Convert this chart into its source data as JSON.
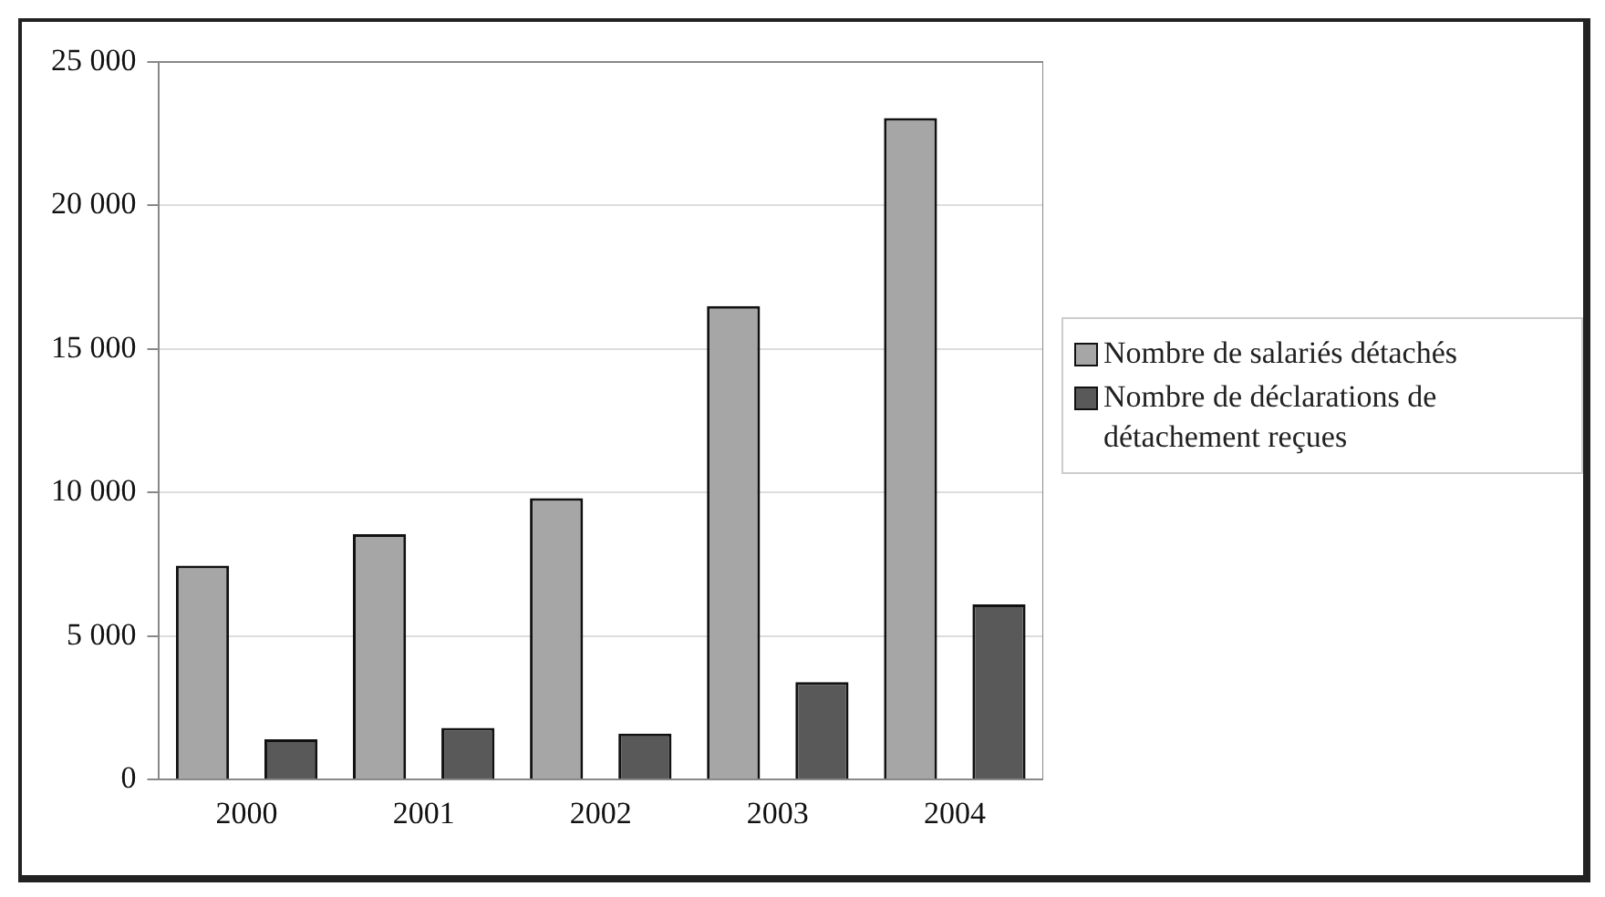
{
  "chart_data": {
    "type": "bar",
    "categories": [
      "2000",
      "2001",
      "2002",
      "2003",
      "2004"
    ],
    "series": [
      {
        "name": "Nombre de salariés détachés",
        "color": "#a6a6a6",
        "values": [
          7450,
          8550,
          9800,
          16500,
          23050
        ]
      },
      {
        "name": "Nombre de déclarations de détachement reçues",
        "color": "#595959",
        "values": [
          1400,
          1800,
          1600,
          3400,
          6100
        ]
      }
    ],
    "ylim": [
      0,
      25000
    ],
    "yticks": [
      {
        "value": 0,
        "label": "0"
      },
      {
        "value": 5000,
        "label": "5 000"
      },
      {
        "value": 10000,
        "label": "10 000"
      },
      {
        "value": 15000,
        "label": "15 000"
      },
      {
        "value": 20000,
        "label": "20 000"
      },
      {
        "value": 25000,
        "label": "25 000"
      }
    ],
    "grid": "y",
    "legend": "right"
  }
}
